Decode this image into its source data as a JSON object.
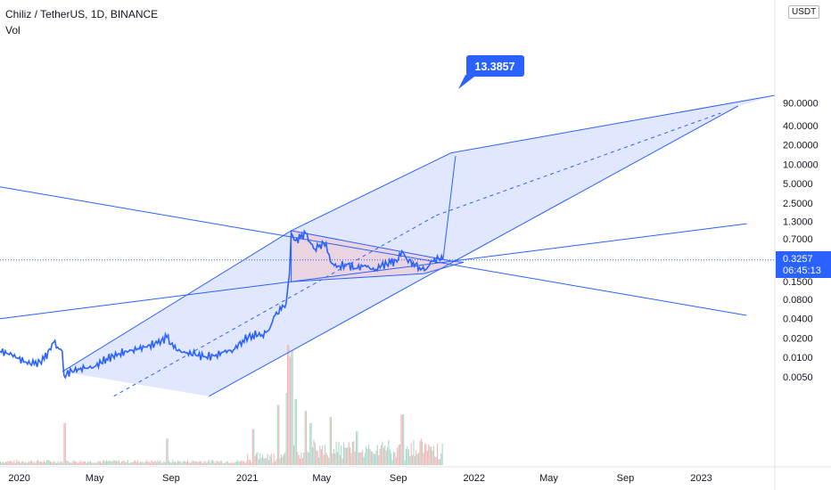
{
  "header": {
    "symbol_title": "Chiliz / TetherUS, 1D, BINANCE",
    "volume_label": "Vol",
    "currency": "USDT"
  },
  "price_badge": {
    "price": "0.3257",
    "countdown": "06:45:13"
  },
  "target_callout": "13.3857",
  "colors": {
    "line": "#2962ff",
    "channel_fill": "#dbe3ff",
    "triangle_fill": "#eecfd9",
    "callout_bg": "#2962ff",
    "volume_up": "#a7d8c8",
    "volume_down": "#f0b5b5"
  },
  "chart_data": {
    "type": "line",
    "title": "Chiliz / TetherUS, 1D, BINANCE",
    "y_scale": "log",
    "y_ticks": [
      "90.0000",
      "40.0000",
      "20.0000",
      "10.0000",
      "5.0000",
      "2.5000",
      "1.3000",
      "0.7000",
      "0.1500",
      "0.0800",
      "0.0400",
      "0.0200",
      "0.0100",
      "0.0050"
    ],
    "y_tick_values": [
      90,
      40,
      20,
      10,
      5,
      2.5,
      1.3,
      0.7,
      0.15,
      0.08,
      0.04,
      0.02,
      0.01,
      0.005
    ],
    "x_ticks": [
      "2020",
      "May",
      "Sep",
      "2021",
      "May",
      "Sep",
      "2022",
      "May",
      "Sep",
      "2023"
    ],
    "x_tick_dates": [
      "2020-01-01",
      "2020-05-01",
      "2020-09-01",
      "2021-01-01",
      "2021-05-01",
      "2021-09-01",
      "2022-01-01",
      "2022-05-01",
      "2022-09-01",
      "2023-01-01"
    ],
    "series": [
      {
        "points": [
          [
            "2019-12-01",
            0.0125
          ],
          [
            "2019-12-20",
            0.011
          ],
          [
            "2020-01-10",
            0.0085
          ],
          [
            "2020-01-25",
            0.0078
          ],
          [
            "2020-02-10",
            0.0092
          ],
          [
            "2020-02-25",
            0.017
          ],
          [
            "2020-03-05",
            0.0135
          ],
          [
            "2020-03-10",
            0.0125
          ],
          [
            "2020-03-13",
            0.0052
          ],
          [
            "2020-03-25",
            0.0062
          ],
          [
            "2020-04-15",
            0.0068
          ],
          [
            "2020-05-01",
            0.0072
          ],
          [
            "2020-05-20",
            0.0095
          ],
          [
            "2020-06-10",
            0.0115
          ],
          [
            "2020-07-01",
            0.013
          ],
          [
            "2020-07-20",
            0.0145
          ],
          [
            "2020-08-10",
            0.0165
          ],
          [
            "2020-08-25",
            0.0205
          ],
          [
            "2020-09-05",
            0.014
          ],
          [
            "2020-09-20",
            0.012
          ],
          [
            "2020-10-10",
            0.011
          ],
          [
            "2020-10-25",
            0.0103
          ],
          [
            "2020-11-10",
            0.0105
          ],
          [
            "2020-11-25",
            0.0123
          ],
          [
            "2020-12-10",
            0.013
          ],
          [
            "2020-12-25",
            0.0185
          ],
          [
            "2021-01-10",
            0.0225
          ],
          [
            "2021-01-25",
            0.0225
          ],
          [
            "2021-02-05",
            0.0265
          ],
          [
            "2021-02-15",
            0.045
          ],
          [
            "2021-02-25",
            0.055
          ],
          [
            "2021-03-05",
            0.07
          ],
          [
            "2021-03-10",
            0.19
          ],
          [
            "2021-03-13",
            0.85
          ],
          [
            "2021-03-20",
            0.65
          ],
          [
            "2021-03-28",
            0.72
          ],
          [
            "2021-04-05",
            0.85
          ],
          [
            "2021-04-12",
            0.62
          ],
          [
            "2021-04-20",
            0.48
          ],
          [
            "2021-04-28",
            0.56
          ],
          [
            "2021-05-08",
            0.6
          ],
          [
            "2021-05-15",
            0.31
          ],
          [
            "2021-05-25",
            0.25
          ],
          [
            "2021-06-10",
            0.28
          ],
          [
            "2021-06-25",
            0.24
          ],
          [
            "2021-07-10",
            0.27
          ],
          [
            "2021-07-25",
            0.22
          ],
          [
            "2021-08-05",
            0.27
          ],
          [
            "2021-08-20",
            0.29
          ],
          [
            "2021-09-01",
            0.33
          ],
          [
            "2021-09-07",
            0.45
          ],
          [
            "2021-09-15",
            0.33
          ],
          [
            "2021-09-25",
            0.3
          ],
          [
            "2021-10-05",
            0.25
          ],
          [
            "2021-10-15",
            0.23
          ],
          [
            "2021-10-25",
            0.31
          ],
          [
            "2021-11-05",
            0.34
          ],
          [
            "2021-11-12",
            0.3257
          ]
        ]
      }
    ],
    "channel": {
      "upper": [
        [
          "2020-03-10",
          0.006
        ],
        [
          "2021-03-13",
          0.93
        ],
        [
          "2021-11-25",
          15
        ],
        [
          "2023-05-01",
          118
        ]
      ],
      "lower": [
        [
          "2020-11-01",
          0.0025
        ],
        [
          "2021-10-25",
          0.2
        ],
        [
          "2023-03-01",
          80
        ]
      ],
      "median": [
        [
          "2020-06-01",
          0.0025
        ],
        [
          "2021-11-01",
          1.6
        ],
        [
          "2023-02-01",
          62
        ]
      ]
    },
    "trend_lines": [
      {
        "from": [
          "2019-12-01",
          4.45
        ],
        "to": [
          "2023-03-15",
          0.045
        ]
      },
      {
        "from": [
          "2019-12-01",
          0.04
        ],
        "to": [
          "2023-03-15",
          1.19
        ]
      }
    ],
    "projection": {
      "from": [
        "2021-11-12",
        0.33
      ],
      "to": [
        "2021-12-02",
        13.3857
      ]
    },
    "triangle": [
      [
        "2021-03-13",
        0.93
      ],
      [
        "2021-11-28",
        0.31
      ],
      [
        "2021-12-15",
        0.3
      ],
      [
        "2021-10-12",
        0.2
      ],
      [
        "2021-03-13",
        0.15
      ]
    ],
    "last_price": 0.3257,
    "volume": {
      "start": "2019-12-01",
      "end": "2021-11-12",
      "spikes": [
        [
          "2020-03-13",
          0.35
        ],
        [
          "2020-08-25",
          0.22
        ],
        [
          "2021-01-10",
          0.3
        ],
        [
          "2021-02-20",
          0.5
        ],
        [
          "2021-03-05",
          0.6
        ],
        [
          "2021-03-08",
          1.0
        ],
        [
          "2021-03-10",
          0.9
        ],
        [
          "2021-03-13",
          0.95
        ],
        [
          "2021-03-20",
          0.55
        ],
        [
          "2021-04-05",
          0.45
        ],
        [
          "2021-04-12",
          0.35
        ],
        [
          "2021-05-15",
          0.4
        ],
        [
          "2021-06-25",
          0.28
        ],
        [
          "2021-09-07",
          0.42
        ]
      ]
    }
  }
}
